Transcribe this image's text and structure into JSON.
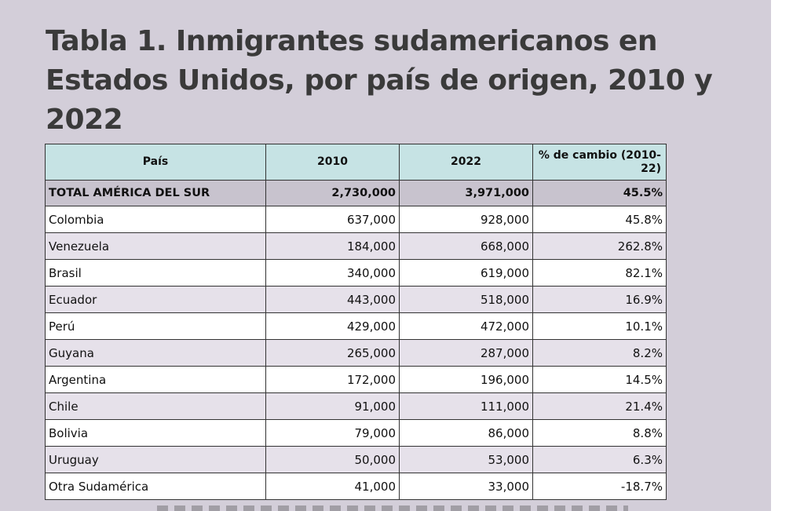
{
  "title": "Tabla 1. Inmigrantes sudamericanos en Estados Unidos, por país de origen, 2010 y 2022",
  "table": {
    "headers": [
      "País",
      "2010",
      "2022",
      "% de cambio (2010-22)"
    ],
    "total": {
      "name": "TOTAL AMÉRICA DEL SUR",
      "y2010": "2,730,000",
      "y2022": "3,971,000",
      "change": "45.5%"
    },
    "rows": [
      {
        "name": "Colombia",
        "y2010": "637,000",
        "y2022": "928,000",
        "change": "45.8%"
      },
      {
        "name": "Venezuela",
        "y2010": "184,000",
        "y2022": "668,000",
        "change": "262.8%"
      },
      {
        "name": "Brasil",
        "y2010": "340,000",
        "y2022": "619,000",
        "change": "82.1%"
      },
      {
        "name": "Ecuador",
        "y2010": "443,000",
        "y2022": "518,000",
        "change": "16.9%"
      },
      {
        "name": "Perú",
        "y2010": "429,000",
        "y2022": "472,000",
        "change": "10.1%"
      },
      {
        "name": "Guyana",
        "y2010": "265,000",
        "y2022": "287,000",
        "change": "8.2%"
      },
      {
        "name": "Argentina",
        "y2010": "172,000",
        "y2022": "196,000",
        "change": "14.5%"
      },
      {
        "name": "Chile",
        "y2010": "91,000",
        "y2022": "111,000",
        "change": "21.4%"
      },
      {
        "name": "Bolivia",
        "y2010": "79,000",
        "y2022": "86,000",
        "change": "8.8%"
      },
      {
        "name": "Uruguay",
        "y2010": "50,000",
        "y2022": "53,000",
        "change": "6.3%"
      },
      {
        "name": "Otra Sudamérica",
        "y2010": "41,000",
        "y2022": "33,000",
        "change": "-18.7%"
      }
    ]
  },
  "colors": {
    "panel": "#d3ced9",
    "header": "#c6e3e4",
    "total_row": "#c8c3ce",
    "alt_row": "#e6e1ea"
  }
}
